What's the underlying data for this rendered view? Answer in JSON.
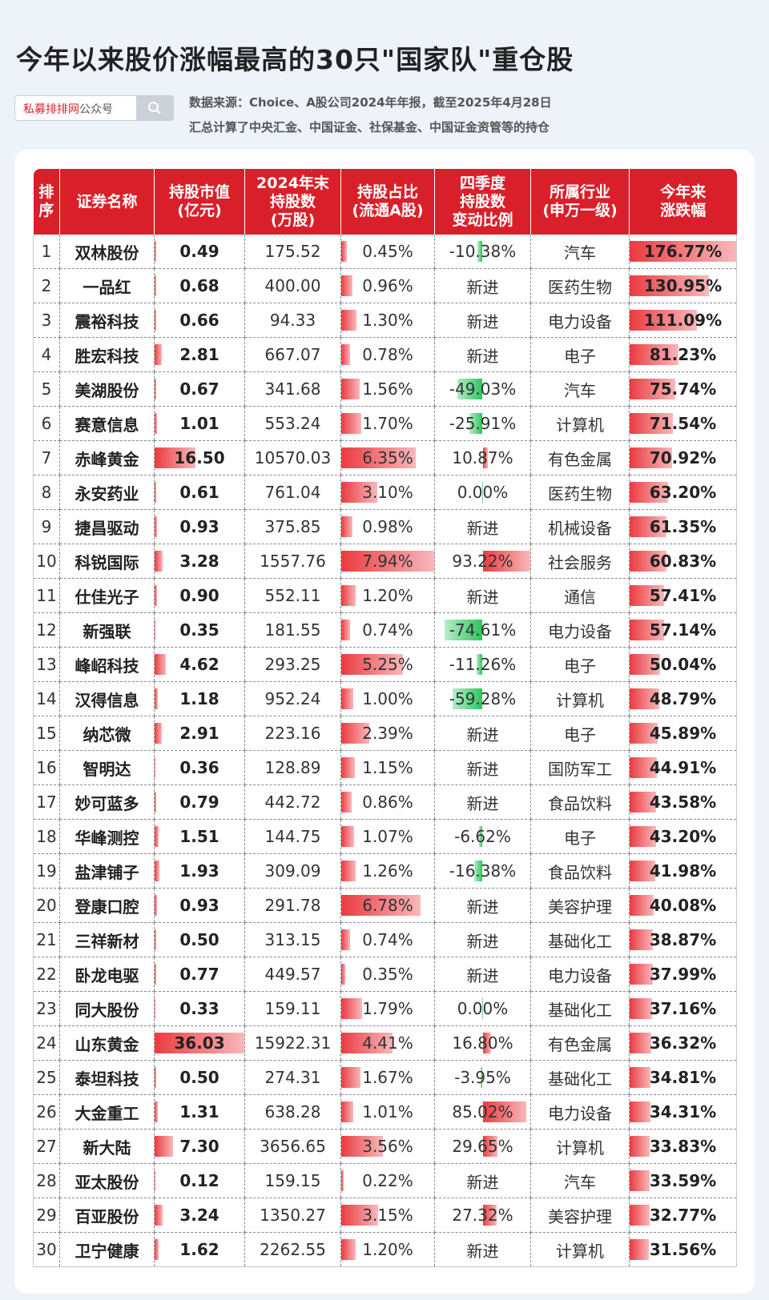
{
  "title": "今年以来股价涨幅最高的30只\"国家队\"重仓股",
  "search": {
    "brand": "私募排排网",
    "suffix": "公众号",
    "icon": "search-icon"
  },
  "source": {
    "line1": "数据来源：Choice、A股公司2024年年报，截至2025年4月28日",
    "line2": "汇总计算了中央汇金、中国证金、社保基金、中国证金资管等的持仓"
  },
  "colors": {
    "header": "#d9202a",
    "positive_bar": "#ea3b40",
    "negative_bar": "#2bc55e"
  },
  "chart_data": {
    "type": "table",
    "columns": [
      "排序",
      "证券名称",
      "持股市值(亿元)",
      "2024年末持股数(万股)",
      "持股占比(流通A股)",
      "四季度持股数变动比例",
      "所属行业(申万一级)",
      "今年来涨跌幅"
    ],
    "header_lines": [
      [
        "排",
        "序"
      ],
      [
        "证券名称"
      ],
      [
        "持股市值",
        "(亿元)"
      ],
      [
        "2024年末",
        "持股数",
        "(万股)"
      ],
      [
        "持股占比",
        "(流通A股)"
      ],
      [
        "四季度",
        "持股数",
        "变动比例"
      ],
      [
        "所属行业",
        "(申万一级)"
      ],
      [
        "今年来",
        "涨跌幅"
      ]
    ],
    "scales": {
      "market_value_max": 36.03,
      "share_ratio_max": 7.94,
      "change_abs_max": 93.22,
      "ytd_max": 176.77
    },
    "rows": [
      {
        "rank": "1",
        "name": "双林股份",
        "value": "0.49",
        "shares": "175.52",
        "ratio": "0.45%",
        "change": "-10.38%",
        "industry": "汽车",
        "ytd": "176.77%"
      },
      {
        "rank": "2",
        "name": "一品红",
        "value": "0.68",
        "shares": "400.00",
        "ratio": "0.96%",
        "change": "新进",
        "industry": "医药生物",
        "ytd": "130.95%"
      },
      {
        "rank": "3",
        "name": "震裕科技",
        "value": "0.66",
        "shares": "94.33",
        "ratio": "1.30%",
        "change": "新进",
        "industry": "电力设备",
        "ytd": "111.09%"
      },
      {
        "rank": "4",
        "name": "胜宏科技",
        "value": "2.81",
        "shares": "667.07",
        "ratio": "0.78%",
        "change": "新进",
        "industry": "电子",
        "ytd": "81.23%"
      },
      {
        "rank": "5",
        "name": "美湖股份",
        "value": "0.67",
        "shares": "341.68",
        "ratio": "1.56%",
        "change": "-49.03%",
        "industry": "汽车",
        "ytd": "75.74%"
      },
      {
        "rank": "6",
        "name": "赛意信息",
        "value": "1.01",
        "shares": "553.24",
        "ratio": "1.70%",
        "change": "-25.91%",
        "industry": "计算机",
        "ytd": "71.54%"
      },
      {
        "rank": "7",
        "name": "赤峰黄金",
        "value": "16.50",
        "shares": "10570.03",
        "ratio": "6.35%",
        "change": "10.87%",
        "industry": "有色金属",
        "ytd": "70.92%"
      },
      {
        "rank": "8",
        "name": "永安药业",
        "value": "0.61",
        "shares": "761.04",
        "ratio": "3.10%",
        "change": "0.00%",
        "industry": "医药生物",
        "ytd": "63.20%"
      },
      {
        "rank": "9",
        "name": "捷昌驱动",
        "value": "0.93",
        "shares": "375.85",
        "ratio": "0.98%",
        "change": "新进",
        "industry": "机械设备",
        "ytd": "61.35%"
      },
      {
        "rank": "10",
        "name": "科锐国际",
        "value": "3.28",
        "shares": "1557.76",
        "ratio": "7.94%",
        "change": "93.22%",
        "industry": "社会服务",
        "ytd": "60.83%"
      },
      {
        "rank": "11",
        "name": "仕佳光子",
        "value": "0.90",
        "shares": "552.11",
        "ratio": "1.20%",
        "change": "新进",
        "industry": "通信",
        "ytd": "57.41%"
      },
      {
        "rank": "12",
        "name": "新强联",
        "value": "0.35",
        "shares": "181.55",
        "ratio": "0.74%",
        "change": "-74.61%",
        "industry": "电力设备",
        "ytd": "57.14%"
      },
      {
        "rank": "13",
        "name": "峰岹科技",
        "value": "4.62",
        "shares": "293.25",
        "ratio": "5.25%",
        "change": "-11.26%",
        "industry": "电子",
        "ytd": "50.04%"
      },
      {
        "rank": "14",
        "name": "汉得信息",
        "value": "1.18",
        "shares": "952.24",
        "ratio": "1.00%",
        "change": "-59.28%",
        "industry": "计算机",
        "ytd": "48.79%"
      },
      {
        "rank": "15",
        "name": "纳芯微",
        "value": "2.91",
        "shares": "223.16",
        "ratio": "2.39%",
        "change": "新进",
        "industry": "电子",
        "ytd": "45.89%"
      },
      {
        "rank": "16",
        "name": "智明达",
        "value": "0.36",
        "shares": "128.89",
        "ratio": "1.15%",
        "change": "新进",
        "industry": "国防军工",
        "ytd": "44.91%"
      },
      {
        "rank": "17",
        "name": "妙可蓝多",
        "value": "0.79",
        "shares": "442.72",
        "ratio": "0.86%",
        "change": "新进",
        "industry": "食品饮料",
        "ytd": "43.58%"
      },
      {
        "rank": "18",
        "name": "华峰测控",
        "value": "1.51",
        "shares": "144.75",
        "ratio": "1.07%",
        "change": "-6.62%",
        "industry": "电子",
        "ytd": "43.20%"
      },
      {
        "rank": "19",
        "name": "盐津铺子",
        "value": "1.93",
        "shares": "309.09",
        "ratio": "1.26%",
        "change": "-16.38%",
        "industry": "食品饮料",
        "ytd": "41.98%"
      },
      {
        "rank": "20",
        "name": "登康口腔",
        "value": "0.93",
        "shares": "291.78",
        "ratio": "6.78%",
        "change": "新进",
        "industry": "美容护理",
        "ytd": "40.08%"
      },
      {
        "rank": "21",
        "name": "三祥新材",
        "value": "0.50",
        "shares": "313.15",
        "ratio": "0.74%",
        "change": "新进",
        "industry": "基础化工",
        "ytd": "38.87%"
      },
      {
        "rank": "22",
        "name": "卧龙电驱",
        "value": "0.77",
        "shares": "449.57",
        "ratio": "0.35%",
        "change": "新进",
        "industry": "电力设备",
        "ytd": "37.99%"
      },
      {
        "rank": "23",
        "name": "同大股份",
        "value": "0.33",
        "shares": "159.11",
        "ratio": "1.79%",
        "change": "0.00%",
        "industry": "基础化工",
        "ytd": "37.16%"
      },
      {
        "rank": "24",
        "name": "山东黄金",
        "value": "36.03",
        "shares": "15922.31",
        "ratio": "4.41%",
        "change": "16.80%",
        "industry": "有色金属",
        "ytd": "36.32%"
      },
      {
        "rank": "25",
        "name": "泰坦科技",
        "value": "0.50",
        "shares": "274.31",
        "ratio": "1.67%",
        "change": "-3.95%",
        "industry": "基础化工",
        "ytd": "34.81%"
      },
      {
        "rank": "26",
        "name": "大金重工",
        "value": "1.31",
        "shares": "638.28",
        "ratio": "1.01%",
        "change": "85.02%",
        "industry": "电力设备",
        "ytd": "34.31%"
      },
      {
        "rank": "27",
        "name": "新大陆",
        "value": "7.30",
        "shares": "3656.65",
        "ratio": "3.56%",
        "change": "29.65%",
        "industry": "计算机",
        "ytd": "33.83%"
      },
      {
        "rank": "28",
        "name": "亚太股份",
        "value": "0.12",
        "shares": "159.15",
        "ratio": "0.22%",
        "change": "新进",
        "industry": "汽车",
        "ytd": "33.59%"
      },
      {
        "rank": "29",
        "name": "百亚股份",
        "value": "3.24",
        "shares": "1350.27",
        "ratio": "3.15%",
        "change": "27.32%",
        "industry": "美容护理",
        "ytd": "32.77%"
      },
      {
        "rank": "30",
        "name": "卫宁健康",
        "value": "1.62",
        "shares": "2262.55",
        "ratio": "1.20%",
        "change": "新进",
        "industry": "计算机",
        "ytd": "31.56%"
      }
    ]
  }
}
